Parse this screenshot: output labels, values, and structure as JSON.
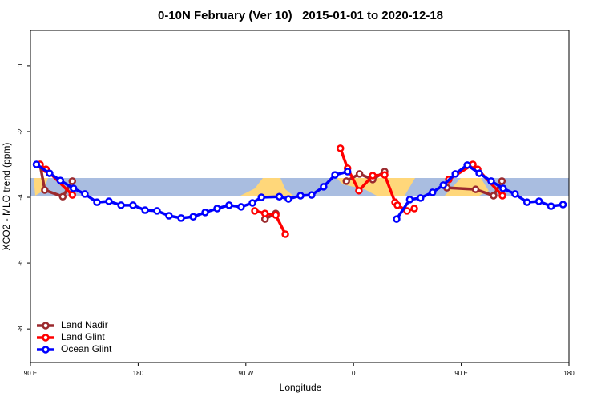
{
  "chart_data": {
    "type": "line",
    "title": "0-10N February (Ver 10)   2015-01-01 to 2020-12-18",
    "x_label": "Longitude",
    "y_label": "XCO2 - MLO trend (ppm)",
    "xlim": [
      90,
      540
    ],
    "ylim": [
      -9.02,
      1.07
    ],
    "xticks": [
      {
        "value": 90,
        "label": "90 E"
      },
      180,
      {
        "value": 270,
        "label": "90 W"
      },
      {
        "value": 360,
        "label": "0"
      },
      {
        "value": 450,
        "label": "90 E"
      },
      {
        "value": 540,
        "label": "180"
      }
    ],
    "yticks": [
      0,
      -2,
      -4,
      -6,
      -8
    ],
    "legend": "bottom-left",
    "series": [
      {
        "name": "Land Nadir",
        "color": "#9b2a2e",
        "x": [
          98,
          102,
          117,
          125,
          null,
          286,
          295,
          null,
          354,
          365,
          376,
          386,
          null,
          438,
          462,
          477,
          484
        ],
        "values": [
          -3.0,
          -3.78,
          -3.98,
          -3.51,
          null,
          -4.66,
          -4.49,
          null,
          -3.51,
          -3.29,
          -3.46,
          -3.22,
          null,
          -3.71,
          -3.76,
          -3.95,
          -3.51
        ]
      },
      {
        "name": "Land Glint",
        "color": "#ff0000",
        "x": [
          98,
          103,
          125,
          null,
          277.5,
          286,
          295,
          303,
          null,
          349,
          355,
          364.5,
          376,
          386,
          394.7,
          396.7,
          404.7,
          410.8,
          null,
          439.6,
          459.7,
          463.7,
          484.4
        ],
        "values": [
          -3.0,
          -3.15,
          -3.93,
          null,
          -4.41,
          -4.49,
          -4.54,
          -5.12,
          null,
          -2.51,
          -3.12,
          -3.8,
          -3.34,
          -3.32,
          -4.15,
          -4.24,
          -4.41,
          -4.34,
          null,
          -3.46,
          -3.0,
          -3.15,
          -3.95
        ]
      },
      {
        "name": "Ocean Glint",
        "color": "#0000ff",
        "x": [
          95,
          106,
          115,
          126,
          135.5,
          145.6,
          155.6,
          165.7,
          175.7,
          185.8,
          195.8,
          205.8,
          215.9,
          226,
          236,
          246,
          256,
          266,
          275.5,
          283,
          298,
          305.6,
          315.7,
          325,
          335,
          344.5,
          355,
          null,
          396,
          407,
          416,
          426,
          435,
          445,
          455,
          465,
          475,
          485,
          495,
          505,
          515,
          525,
          535
        ],
        "values": [
          -3.0,
          -3.27,
          -3.49,
          -3.73,
          -3.9,
          -4.15,
          -4.12,
          -4.24,
          -4.24,
          -4.39,
          -4.41,
          -4.56,
          -4.63,
          -4.59,
          -4.46,
          -4.34,
          -4.24,
          -4.29,
          -4.17,
          -4.0,
          -3.98,
          -4.05,
          -3.95,
          -3.93,
          -3.68,
          -3.32,
          -3.22,
          null,
          -4.66,
          -4.07,
          -4.02,
          -3.85,
          -3.63,
          -3.29,
          -3.02,
          -3.27,
          -3.51,
          -3.73,
          -3.9,
          -4.15,
          -4.12,
          -4.27,
          -4.22
        ]
      }
    ]
  }
}
